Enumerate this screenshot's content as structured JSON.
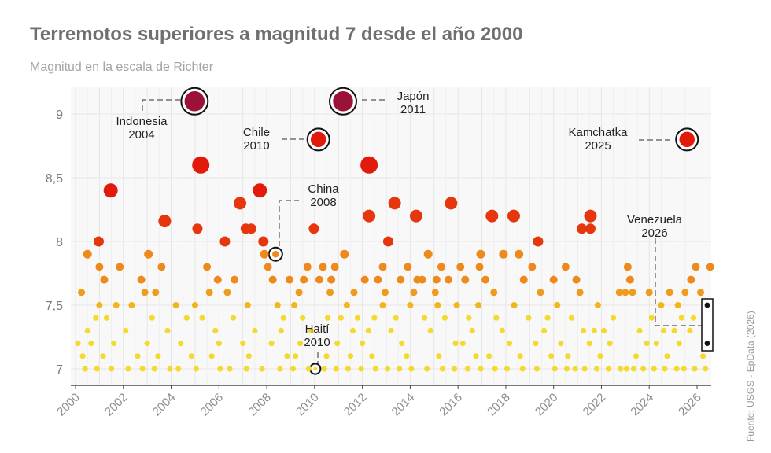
{
  "header": {
    "title": "Terremotos superiores a magnitud 7 desde el año 2000",
    "subtitle": "Magnitud en la escala de Richter"
  },
  "source": "Fuente: USGS - EpData (2026)",
  "chart_data": {
    "type": "scatter",
    "title": "Terremotos superiores a magnitud 7 desde el año 2000",
    "subtitle": "Magnitud en la escala de Richter",
    "xlabel": "",
    "ylabel": "",
    "xlim": [
      2000,
      2026.6
    ],
    "ylim": [
      6.95,
      9.2
    ],
    "x_ticks": [
      "2000",
      "2002",
      "2004",
      "2006",
      "2008",
      "2010",
      "2012",
      "2014",
      "2016",
      "2018",
      "2020",
      "2022",
      "2024",
      "2026"
    ],
    "y_ticks": [
      "7",
      "7,5",
      "8",
      "8,5",
      "9"
    ],
    "grid": true,
    "colors": {
      "m7_0": "#f4da2e",
      "m7_5": "#f2b51d",
      "m7_6": "#ef9c1c",
      "m7_8": "#ee8a1c",
      "m8_0": "#e6360e",
      "m8_3": "#e11a0c",
      "m9_0": "#9b1137"
    },
    "highlighted": [
      {
        "name": "Indonesia",
        "year": "2004",
        "x": 2004.98,
        "y": 9.1
      },
      {
        "name": "Japón",
        "year": "2011",
        "x": 2011.19,
        "y": 9.1
      },
      {
        "name": "Chile",
        "year": "2010",
        "x": 2010.16,
        "y": 8.8
      },
      {
        "name": "Kamchatka",
        "year": "2025",
        "x": 2025.58,
        "y": 8.8
      },
      {
        "name": "China",
        "year": "2008",
        "x": 2008.37,
        "y": 7.9
      },
      {
        "name": "Haití",
        "year": "2010",
        "x": 2010.03,
        "y": 7.0
      }
    ],
    "venezuela": {
      "name": "Venezuela",
      "year": "2026",
      "points": [
        {
          "x": 2026.05,
          "y": 7.5
        },
        {
          "x": 2026.05,
          "y": 7.2
        }
      ]
    },
    "points": [
      {
        "x": 2004.98,
        "y": 9.1
      },
      {
        "x": 2011.19,
        "y": 9.1
      },
      {
        "x": 2010.16,
        "y": 8.8
      },
      {
        "x": 2025.58,
        "y": 8.8
      },
      {
        "x": 2005.24,
        "y": 8.6
      },
      {
        "x": 2012.28,
        "y": 8.6
      },
      {
        "x": 2001.47,
        "y": 8.4
      },
      {
        "x": 2007.71,
        "y": 8.4
      },
      {
        "x": 2006.88,
        "y": 8.3
      },
      {
        "x": 2013.35,
        "y": 8.3
      },
      {
        "x": 2015.71,
        "y": 8.3
      },
      {
        "x": 2003.73,
        "y": 8.16
      },
      {
        "x": 2012.28,
        "y": 8.2
      },
      {
        "x": 2014.25,
        "y": 8.2
      },
      {
        "x": 2017.42,
        "y": 8.2
      },
      {
        "x": 2018.33,
        "y": 8.2
      },
      {
        "x": 2021.54,
        "y": 8.2
      },
      {
        "x": 2007.12,
        "y": 8.1
      },
      {
        "x": 2007.35,
        "y": 8.1
      },
      {
        "x": 2005.1,
        "y": 8.1
      },
      {
        "x": 2009.97,
        "y": 8.1
      },
      {
        "x": 2021.18,
        "y": 8.1
      },
      {
        "x": 2021.54,
        "y": 8.1
      },
      {
        "x": 2000.97,
        "y": 8.0
      },
      {
        "x": 2006.25,
        "y": 8.0
      },
      {
        "x": 2007.86,
        "y": 8.0
      },
      {
        "x": 2013.08,
        "y": 8.0
      },
      {
        "x": 2019.35,
        "y": 8.0
      },
      {
        "x": 2008.37,
        "y": 7.9
      },
      {
        "x": 2000.5,
        "y": 7.9
      },
      {
        "x": 2003.05,
        "y": 7.9
      },
      {
        "x": 2007.9,
        "y": 7.9
      },
      {
        "x": 2011.25,
        "y": 7.9
      },
      {
        "x": 2014.75,
        "y": 7.9
      },
      {
        "x": 2016.95,
        "y": 7.9
      },
      {
        "x": 2017.9,
        "y": 7.9
      },
      {
        "x": 2018.55,
        "y": 7.9
      },
      {
        "x": 2001.0,
        "y": 7.8
      },
      {
        "x": 2001.85,
        "y": 7.8
      },
      {
        "x": 2003.6,
        "y": 7.8
      },
      {
        "x": 2005.5,
        "y": 7.8
      },
      {
        "x": 2008.05,
        "y": 7.8
      },
      {
        "x": 2009.7,
        "y": 7.8
      },
      {
        "x": 2010.35,
        "y": 7.8
      },
      {
        "x": 2010.85,
        "y": 7.8
      },
      {
        "x": 2012.85,
        "y": 7.8
      },
      {
        "x": 2013.9,
        "y": 7.8
      },
      {
        "x": 2015.3,
        "y": 7.8
      },
      {
        "x": 2016.1,
        "y": 7.8
      },
      {
        "x": 2016.9,
        "y": 7.8
      },
      {
        "x": 2019.1,
        "y": 7.8
      },
      {
        "x": 2020.5,
        "y": 7.8
      },
      {
        "x": 2023.1,
        "y": 7.8
      },
      {
        "x": 2025.95,
        "y": 7.8
      },
      {
        "x": 2026.55,
        "y": 7.8
      },
      {
        "x": 2001.2,
        "y": 7.7
      },
      {
        "x": 2002.75,
        "y": 7.7
      },
      {
        "x": 2005.95,
        "y": 7.7
      },
      {
        "x": 2006.65,
        "y": 7.7
      },
      {
        "x": 2008.25,
        "y": 7.7
      },
      {
        "x": 2008.95,
        "y": 7.7
      },
      {
        "x": 2009.55,
        "y": 7.7
      },
      {
        "x": 2010.2,
        "y": 7.7
      },
      {
        "x": 2010.7,
        "y": 7.7
      },
      {
        "x": 2012.1,
        "y": 7.7
      },
      {
        "x": 2012.65,
        "y": 7.7
      },
      {
        "x": 2013.6,
        "y": 7.7
      },
      {
        "x": 2014.3,
        "y": 7.7
      },
      {
        "x": 2014.5,
        "y": 7.7
      },
      {
        "x": 2015.1,
        "y": 7.7
      },
      {
        "x": 2015.6,
        "y": 7.7
      },
      {
        "x": 2016.3,
        "y": 7.7
      },
      {
        "x": 2017.15,
        "y": 7.7
      },
      {
        "x": 2018.75,
        "y": 7.7
      },
      {
        "x": 2020.0,
        "y": 7.7
      },
      {
        "x": 2020.95,
        "y": 7.7
      },
      {
        "x": 2023.2,
        "y": 7.7
      },
      {
        "x": 2025.75,
        "y": 7.7
      },
      {
        "x": 2000.25,
        "y": 7.6
      },
      {
        "x": 2002.9,
        "y": 7.6
      },
      {
        "x": 2003.35,
        "y": 7.6
      },
      {
        "x": 2005.6,
        "y": 7.6
      },
      {
        "x": 2006.35,
        "y": 7.6
      },
      {
        "x": 2009.35,
        "y": 7.6
      },
      {
        "x": 2010.65,
        "y": 7.6
      },
      {
        "x": 2011.65,
        "y": 7.6
      },
      {
        "x": 2012.95,
        "y": 7.6
      },
      {
        "x": 2014.15,
        "y": 7.6
      },
      {
        "x": 2015.05,
        "y": 7.6
      },
      {
        "x": 2017.5,
        "y": 7.6
      },
      {
        "x": 2019.45,
        "y": 7.6
      },
      {
        "x": 2021.1,
        "y": 7.6
      },
      {
        "x": 2022.75,
        "y": 7.6
      },
      {
        "x": 2023.0,
        "y": 7.6
      },
      {
        "x": 2023.3,
        "y": 7.6
      },
      {
        "x": 2024.0,
        "y": 7.6
      },
      {
        "x": 2024.85,
        "y": 7.6
      },
      {
        "x": 2025.5,
        "y": 7.6
      },
      {
        "x": 2026.15,
        "y": 7.6
      },
      {
        "x": 2001.0,
        "y": 7.5
      },
      {
        "x": 2001.7,
        "y": 7.5
      },
      {
        "x": 2002.35,
        "y": 7.5
      },
      {
        "x": 2004.2,
        "y": 7.5
      },
      {
        "x": 2005.0,
        "y": 7.5
      },
      {
        "x": 2007.2,
        "y": 7.5
      },
      {
        "x": 2008.45,
        "y": 7.5
      },
      {
        "x": 2009.15,
        "y": 7.5
      },
      {
        "x": 2011.35,
        "y": 7.5
      },
      {
        "x": 2012.85,
        "y": 7.5
      },
      {
        "x": 2014.0,
        "y": 7.5
      },
      {
        "x": 2015.15,
        "y": 7.5
      },
      {
        "x": 2015.95,
        "y": 7.5
      },
      {
        "x": 2016.85,
        "y": 7.5
      },
      {
        "x": 2018.35,
        "y": 7.5
      },
      {
        "x": 2020.15,
        "y": 7.5
      },
      {
        "x": 2021.85,
        "y": 7.5
      },
      {
        "x": 2024.5,
        "y": 7.5
      },
      {
        "x": 2025.2,
        "y": 7.5
      },
      {
        "x": 2000.85,
        "y": 7.4
      },
      {
        "x": 2001.3,
        "y": 7.4
      },
      {
        "x": 2003.2,
        "y": 7.4
      },
      {
        "x": 2004.65,
        "y": 7.4
      },
      {
        "x": 2005.3,
        "y": 7.4
      },
      {
        "x": 2006.6,
        "y": 7.4
      },
      {
        "x": 2008.7,
        "y": 7.4
      },
      {
        "x": 2009.5,
        "y": 7.4
      },
      {
        "x": 2010.55,
        "y": 7.4
      },
      {
        "x": 2011.1,
        "y": 7.4
      },
      {
        "x": 2011.8,
        "y": 7.4
      },
      {
        "x": 2012.5,
        "y": 7.4
      },
      {
        "x": 2013.4,
        "y": 7.4
      },
      {
        "x": 2014.6,
        "y": 7.4
      },
      {
        "x": 2015.45,
        "y": 7.4
      },
      {
        "x": 2016.45,
        "y": 7.4
      },
      {
        "x": 2017.6,
        "y": 7.4
      },
      {
        "x": 2018.95,
        "y": 7.4
      },
      {
        "x": 2019.75,
        "y": 7.4
      },
      {
        "x": 2020.75,
        "y": 7.4
      },
      {
        "x": 2022.5,
        "y": 7.4
      },
      {
        "x": 2024.1,
        "y": 7.4
      },
      {
        "x": 2025.35,
        "y": 7.4
      },
      {
        "x": 2025.85,
        "y": 7.4
      },
      {
        "x": 2000.5,
        "y": 7.3
      },
      {
        "x": 2002.1,
        "y": 7.3
      },
      {
        "x": 2003.85,
        "y": 7.3
      },
      {
        "x": 2005.85,
        "y": 7.3
      },
      {
        "x": 2007.5,
        "y": 7.3
      },
      {
        "x": 2008.6,
        "y": 7.3
      },
      {
        "x": 2009.85,
        "y": 7.3
      },
      {
        "x": 2011.6,
        "y": 7.3
      },
      {
        "x": 2012.25,
        "y": 7.3
      },
      {
        "x": 2013.2,
        "y": 7.3
      },
      {
        "x": 2014.85,
        "y": 7.3
      },
      {
        "x": 2016.6,
        "y": 7.3
      },
      {
        "x": 2017.85,
        "y": 7.3
      },
      {
        "x": 2019.6,
        "y": 7.3
      },
      {
        "x": 2021.25,
        "y": 7.3
      },
      {
        "x": 2021.7,
        "y": 7.3
      },
      {
        "x": 2022.1,
        "y": 7.3
      },
      {
        "x": 2023.6,
        "y": 7.3
      },
      {
        "x": 2024.6,
        "y": 7.3
      },
      {
        "x": 2025.05,
        "y": 7.3
      },
      {
        "x": 2025.7,
        "y": 7.3
      },
      {
        "x": 2000.1,
        "y": 7.2
      },
      {
        "x": 2000.65,
        "y": 7.2
      },
      {
        "x": 2001.6,
        "y": 7.2
      },
      {
        "x": 2003.0,
        "y": 7.2
      },
      {
        "x": 2004.4,
        "y": 7.2
      },
      {
        "x": 2006.0,
        "y": 7.2
      },
      {
        "x": 2007.0,
        "y": 7.2
      },
      {
        "x": 2008.2,
        "y": 7.2
      },
      {
        "x": 2009.4,
        "y": 7.2
      },
      {
        "x": 2010.95,
        "y": 7.2
      },
      {
        "x": 2012.0,
        "y": 7.2
      },
      {
        "x": 2013.65,
        "y": 7.2
      },
      {
        "x": 2015.9,
        "y": 7.2
      },
      {
        "x": 2016.2,
        "y": 7.2
      },
      {
        "x": 2018.15,
        "y": 7.2
      },
      {
        "x": 2019.25,
        "y": 7.2
      },
      {
        "x": 2020.3,
        "y": 7.2
      },
      {
        "x": 2021.5,
        "y": 7.2
      },
      {
        "x": 2022.35,
        "y": 7.2
      },
      {
        "x": 2023.9,
        "y": 7.2
      },
      {
        "x": 2024.3,
        "y": 7.2
      },
      {
        "x": 2025.25,
        "y": 7.2
      },
      {
        "x": 2000.3,
        "y": 7.1
      },
      {
        "x": 2001.15,
        "y": 7.1
      },
      {
        "x": 2002.6,
        "y": 7.1
      },
      {
        "x": 2003.45,
        "y": 7.1
      },
      {
        "x": 2004.85,
        "y": 7.1
      },
      {
        "x": 2005.7,
        "y": 7.1
      },
      {
        "x": 2007.25,
        "y": 7.1
      },
      {
        "x": 2008.85,
        "y": 7.1
      },
      {
        "x": 2009.2,
        "y": 7.1
      },
      {
        "x": 2010.5,
        "y": 7.1
      },
      {
        "x": 2011.5,
        "y": 7.1
      },
      {
        "x": 2012.4,
        "y": 7.1
      },
      {
        "x": 2013.85,
        "y": 7.1
      },
      {
        "x": 2015.2,
        "y": 7.1
      },
      {
        "x": 2016.75,
        "y": 7.1
      },
      {
        "x": 2017.3,
        "y": 7.1
      },
      {
        "x": 2018.6,
        "y": 7.1
      },
      {
        "x": 2019.9,
        "y": 7.1
      },
      {
        "x": 2020.6,
        "y": 7.1
      },
      {
        "x": 2021.95,
        "y": 7.1
      },
      {
        "x": 2023.45,
        "y": 7.1
      },
      {
        "x": 2024.75,
        "y": 7.1
      },
      {
        "x": 2026.25,
        "y": 7.1
      },
      {
        "x": 2010.03,
        "y": 7.0
      },
      {
        "x": 2000.4,
        "y": 7.0
      },
      {
        "x": 2000.9,
        "y": 7.0
      },
      {
        "x": 2001.5,
        "y": 7.0
      },
      {
        "x": 2002.2,
        "y": 7.0
      },
      {
        "x": 2002.8,
        "y": 7.0
      },
      {
        "x": 2003.3,
        "y": 7.0
      },
      {
        "x": 2003.95,
        "y": 7.0
      },
      {
        "x": 2004.3,
        "y": 7.0
      },
      {
        "x": 2005.05,
        "y": 7.0
      },
      {
        "x": 2006.05,
        "y": 7.0
      },
      {
        "x": 2006.45,
        "y": 7.0
      },
      {
        "x": 2007.15,
        "y": 7.0
      },
      {
        "x": 2007.8,
        "y": 7.0
      },
      {
        "x": 2008.55,
        "y": 7.0
      },
      {
        "x": 2009.1,
        "y": 7.0
      },
      {
        "x": 2009.75,
        "y": 7.0
      },
      {
        "x": 2010.4,
        "y": 7.0
      },
      {
        "x": 2010.9,
        "y": 7.0
      },
      {
        "x": 2011.4,
        "y": 7.0
      },
      {
        "x": 2011.95,
        "y": 7.0
      },
      {
        "x": 2012.55,
        "y": 7.0
      },
      {
        "x": 2013.05,
        "y": 7.0
      },
      {
        "x": 2013.55,
        "y": 7.0
      },
      {
        "x": 2014.05,
        "y": 7.0
      },
      {
        "x": 2014.7,
        "y": 7.0
      },
      {
        "x": 2015.35,
        "y": 7.0
      },
      {
        "x": 2015.85,
        "y": 7.0
      },
      {
        "x": 2016.4,
        "y": 7.0
      },
      {
        "x": 2016.95,
        "y": 7.0
      },
      {
        "x": 2017.55,
        "y": 7.0
      },
      {
        "x": 2018.05,
        "y": 7.0
      },
      {
        "x": 2018.7,
        "y": 7.0
      },
      {
        "x": 2019.3,
        "y": 7.0
      },
      {
        "x": 2020.05,
        "y": 7.0
      },
      {
        "x": 2020.55,
        "y": 7.0
      },
      {
        "x": 2020.9,
        "y": 7.0
      },
      {
        "x": 2021.3,
        "y": 7.0
      },
      {
        "x": 2021.8,
        "y": 7.0
      },
      {
        "x": 2022.3,
        "y": 7.0
      },
      {
        "x": 2022.8,
        "y": 7.0
      },
      {
        "x": 2023.05,
        "y": 7.0
      },
      {
        "x": 2023.35,
        "y": 7.0
      },
      {
        "x": 2023.75,
        "y": 7.0
      },
      {
        "x": 2024.2,
        "y": 7.0
      },
      {
        "x": 2024.65,
        "y": 7.0
      },
      {
        "x": 2025.15,
        "y": 7.0
      },
      {
        "x": 2025.45,
        "y": 7.0
      },
      {
        "x": 2025.9,
        "y": 7.0
      },
      {
        "x": 2026.35,
        "y": 7.0
      }
    ]
  }
}
